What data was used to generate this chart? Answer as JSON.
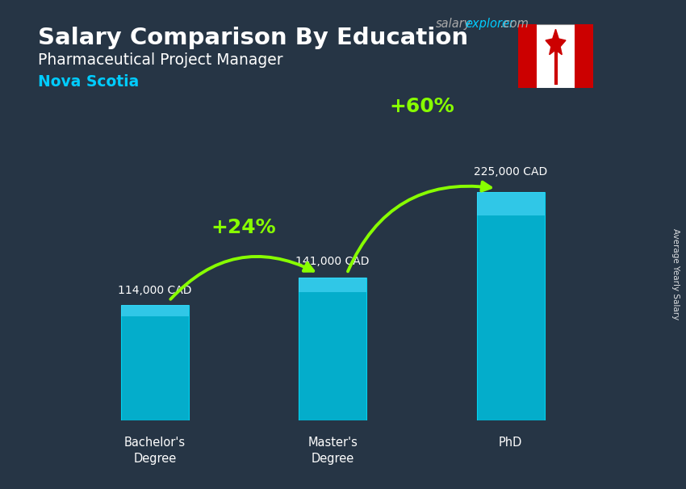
{
  "title_line1": "Salary Comparison By Education",
  "subtitle": "Pharmaceutical Project Manager",
  "location": "Nova Scotia",
  "ylabel_rotated": "Average Yearly Salary",
  "categories": [
    "Bachelor's\nDegree",
    "Master's\nDegree",
    "PhD"
  ],
  "values": [
    114000,
    141000,
    225000
  ],
  "value_labels": [
    "114,000 CAD",
    "141,000 CAD",
    "225,000 CAD"
  ],
  "bar_color": "#00bfdf",
  "bar_edge_color": "#00e0ff",
  "bar_highlight_color": "#55ddff",
  "pct_labels": [
    "+24%",
    "+60%"
  ],
  "pct_color": "#88ff00",
  "arrow_color": "#88ff00",
  "title_color": "#ffffff",
  "label_color": "#ffffff",
  "site_color_salary": "#aaaaaa",
  "site_color_explorer": "#00ccff",
  "site_color_dot_com": "#aaaaaa",
  "location_color": "#00ccff",
  "bg_color": "#263545",
  "ylim": [
    0,
    270000
  ],
  "bar_width": 0.38,
  "x_positions": [
    0,
    1,
    2
  ],
  "flag_box_color": "#cc0000",
  "flag_white": "#ffffff"
}
